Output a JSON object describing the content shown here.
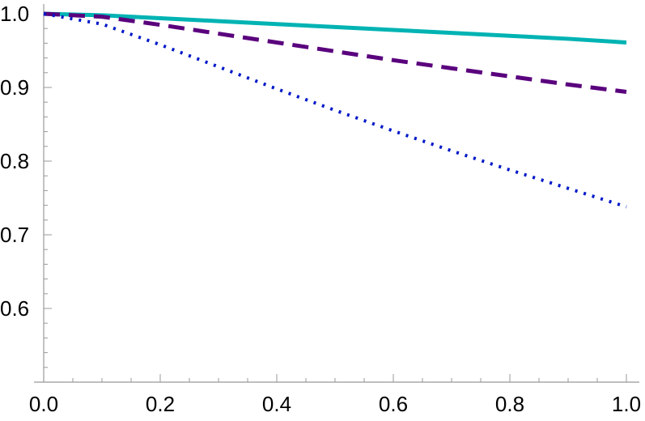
{
  "chart_data": {
    "type": "line",
    "title": "",
    "xlabel": "",
    "ylabel": "",
    "xlim": [
      0.0,
      1.0
    ],
    "ylim": [
      0.5,
      1.0
    ],
    "grid": false,
    "legend": "none",
    "x_ticks": [
      {
        "value": 0.0,
        "label": "0.0"
      },
      {
        "value": 0.2,
        "label": "0.2"
      },
      {
        "value": 0.4,
        "label": "0.4"
      },
      {
        "value": 0.6,
        "label": "0.6"
      },
      {
        "value": 0.8,
        "label": "0.8"
      },
      {
        "value": 1.0,
        "label": "1.0"
      }
    ],
    "y_ticks": [
      {
        "value": 0.6,
        "label": "0.6"
      },
      {
        "value": 0.7,
        "label": "0.7"
      },
      {
        "value": 0.8,
        "label": "0.8"
      },
      {
        "value": 0.9,
        "label": "0.9"
      },
      {
        "value": 1.0,
        "label": "1.0"
      }
    ],
    "series": [
      {
        "color": "#00b3b3",
        "style": "solid",
        "x": [
          0.0,
          0.1,
          0.2,
          0.3,
          0.4,
          0.5,
          0.6,
          0.7,
          0.8,
          0.9,
          1.0
        ],
        "y": [
          1.0,
          0.998,
          0.994,
          0.99,
          0.986,
          0.982,
          0.978,
          0.974,
          0.97,
          0.966,
          0.961
        ]
      },
      {
        "color": "#5a007d",
        "style": "dashed",
        "x": [
          0.0,
          0.1,
          0.2,
          0.3,
          0.4,
          0.5,
          0.6,
          0.7,
          0.8,
          0.9,
          1.0
        ],
        "y": [
          1.0,
          0.996,
          0.985,
          0.973,
          0.961,
          0.949,
          0.937,
          0.926,
          0.915,
          0.904,
          0.894
        ]
      },
      {
        "color": "#0018c8",
        "style": "dotted",
        "x": [
          0.0,
          0.1,
          0.2,
          0.3,
          0.4,
          0.5,
          0.6,
          0.7,
          0.8,
          0.9,
          1.0
        ],
        "y": [
          1.0,
          0.986,
          0.958,
          0.928,
          0.898,
          0.869,
          0.841,
          0.814,
          0.788,
          0.763,
          0.738
        ]
      }
    ]
  }
}
